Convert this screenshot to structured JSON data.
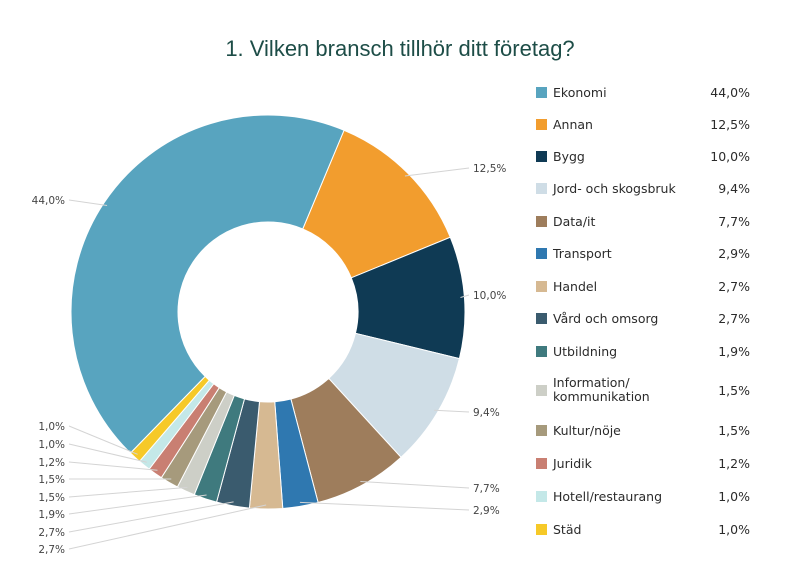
{
  "chart_data": {
    "type": "pie",
    "variant": "donut",
    "title": "1. Vilken bransch tillhör ditt företag?",
    "legend_position": "right",
    "categories": [
      "Ekonomi",
      "Annan",
      "Bygg",
      "Jord- och skogsbruk",
      "Data/it",
      "Transport",
      "Handel",
      "Vård och omsorg",
      "Utbildning",
      "Information/\nkommunikation",
      "Kultur/nöje",
      "Juridik",
      "Hotell/restaurang",
      "Städ"
    ],
    "values": [
      44.0,
      12.5,
      10.0,
      9.4,
      7.7,
      2.9,
      2.7,
      2.7,
      1.9,
      1.5,
      1.5,
      1.2,
      1.0,
      1.0
    ],
    "labels": [
      "44,0%",
      "12,5%",
      "10,0%",
      "9,4%",
      "7,7%",
      "2,9%",
      "2,7%",
      "2,7%",
      "1,9%",
      "1,5%",
      "1,5%",
      "1,2%",
      "1,0%",
      "1,0%"
    ],
    "colors": [
      "#58a4bf",
      "#f29d2e",
      "#0f3a54",
      "#cfdde6",
      "#9e7d5c",
      "#2f78b0",
      "#d6b992",
      "#3a5b6e",
      "#3f7a7e",
      "#cdcfc7",
      "#a69a7c",
      "#c97f72",
      "#c4e8e8",
      "#f6c928"
    ]
  }
}
